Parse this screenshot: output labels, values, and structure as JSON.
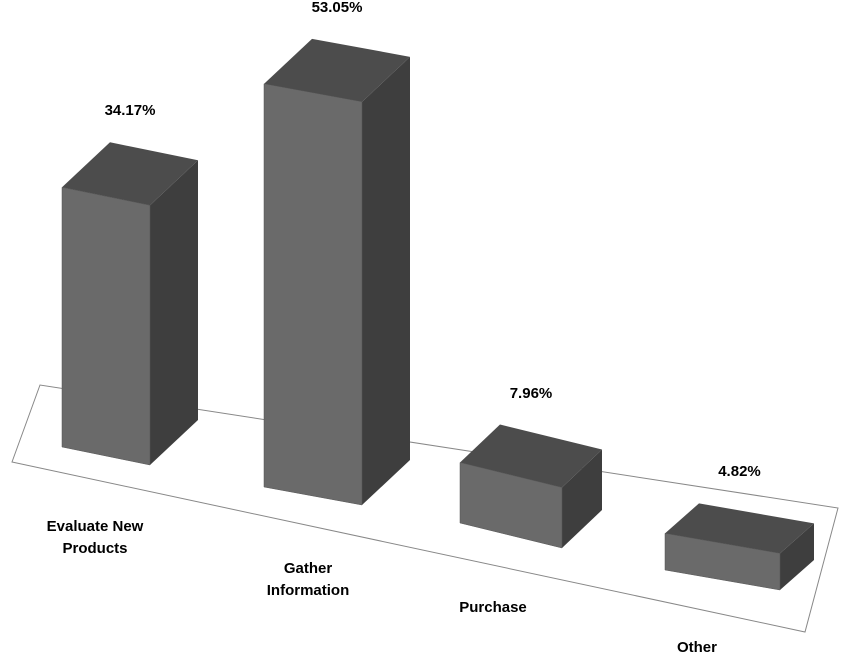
{
  "chart_data": {
    "type": "bar3d",
    "categories": [
      "Evaluate New Products",
      "Gather Information",
      "Purchase",
      "Other"
    ],
    "values": [
      34.17,
      53.05,
      7.96,
      4.82
    ],
    "value_labels": [
      "34.17%",
      "53.05%",
      "7.96%",
      "4.82%"
    ],
    "color": "#6a6a6a"
  }
}
